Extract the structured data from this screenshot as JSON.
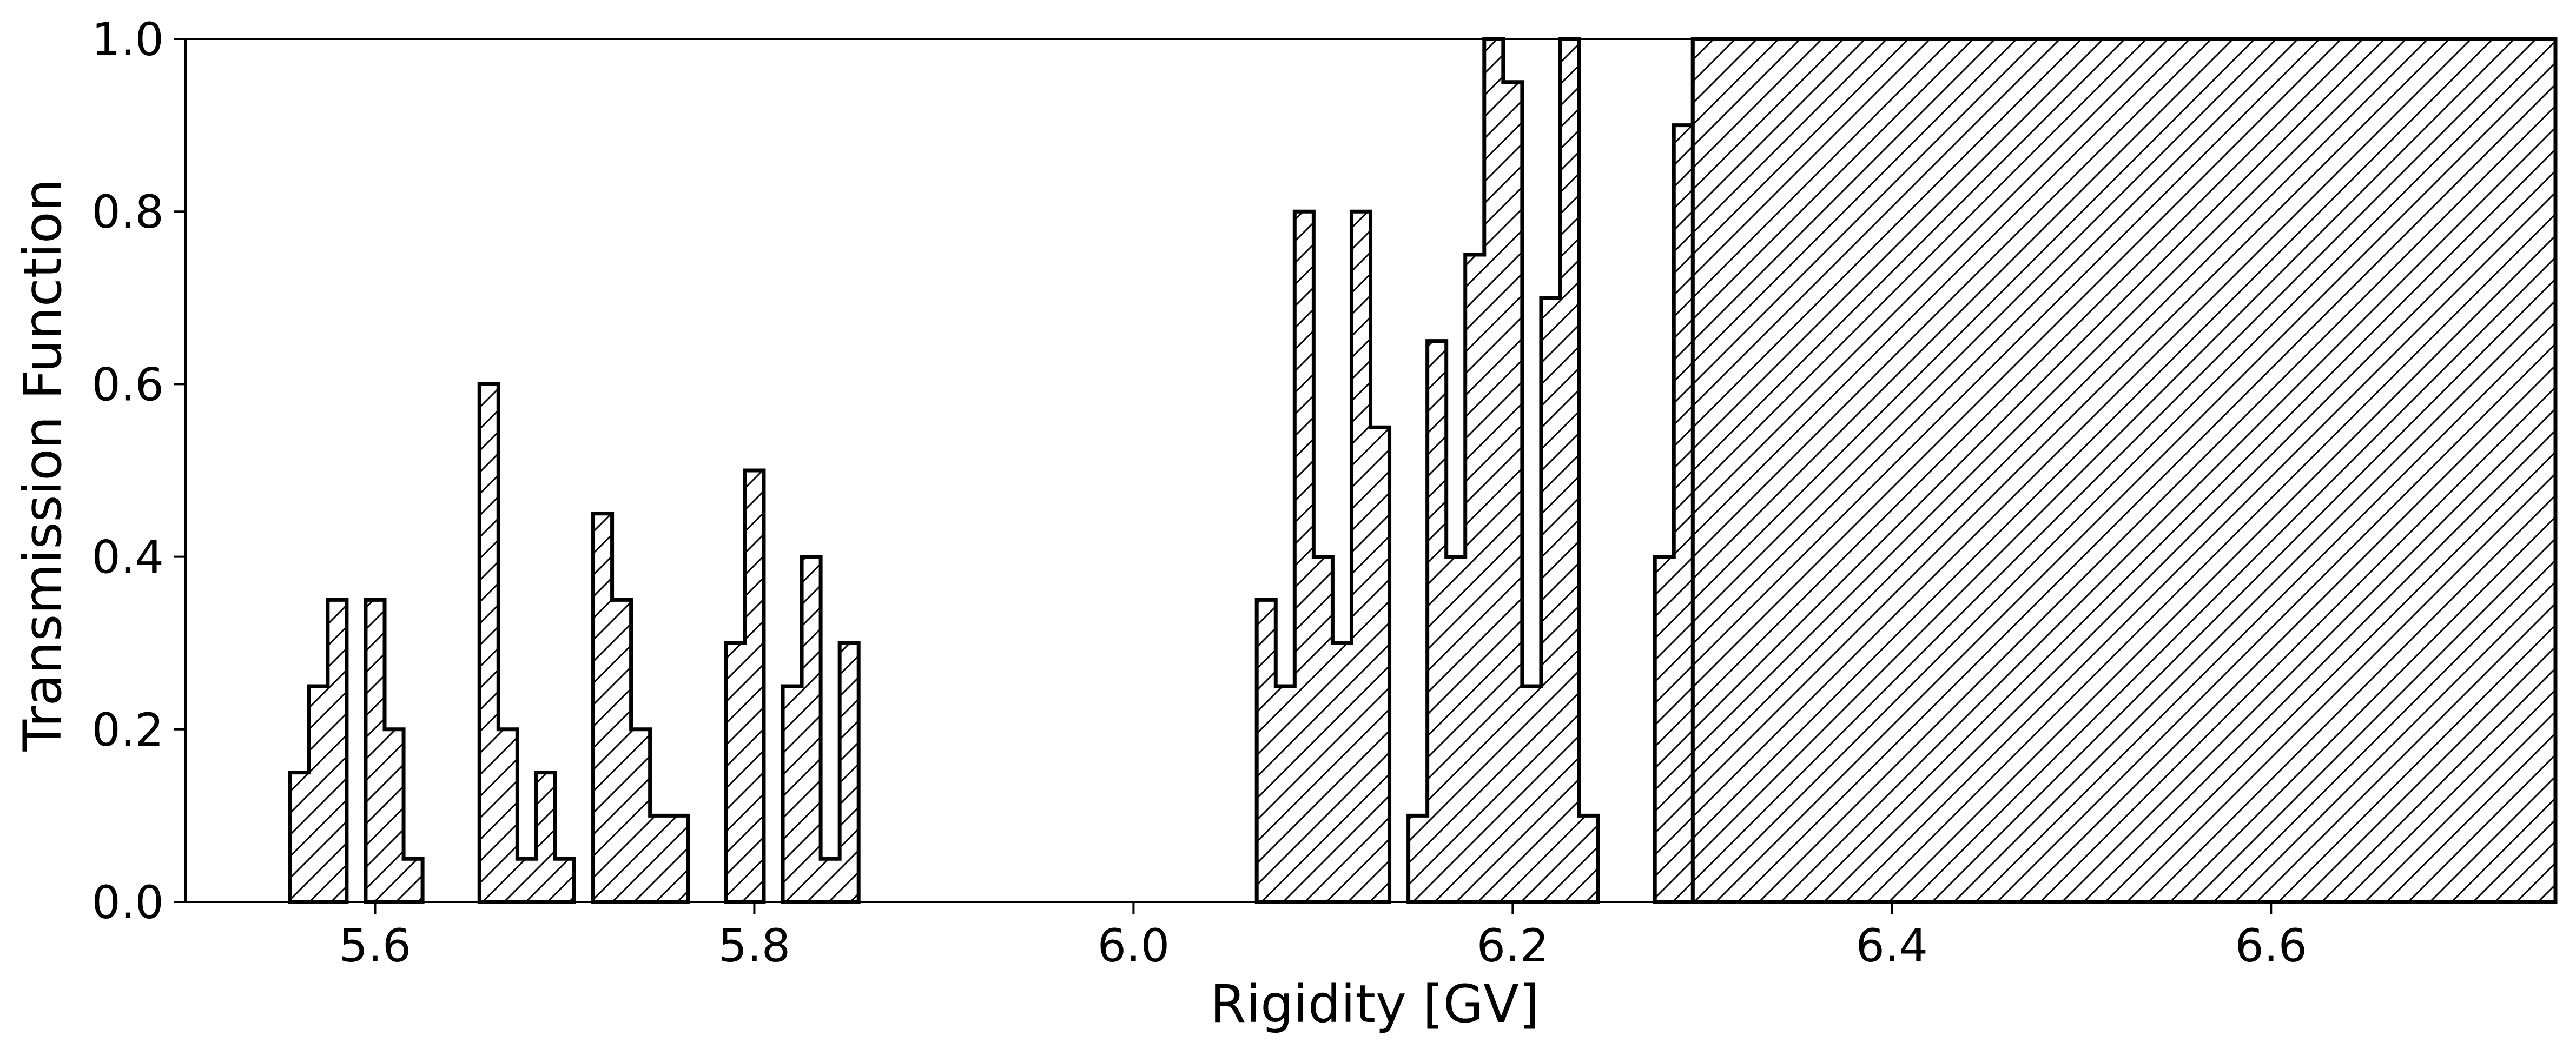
{
  "chart_data": {
    "type": "area",
    "title": "",
    "xlabel": "Rigidity [GV]",
    "ylabel": "Transmission Function",
    "xlim": [
      5.5,
      6.75
    ],
    "ylim": [
      0.0,
      1.0
    ],
    "x_ticks": [
      "5.6",
      "5.8",
      "6.0",
      "6.2",
      "6.4",
      "6.6"
    ],
    "y_ticks": [
      "0.0",
      "0.2",
      "0.4",
      "0.6",
      "0.8",
      "1.0"
    ],
    "grid": false,
    "legend": "none",
    "fill_pattern": "diagonal-hatch",
    "line_color": "#000000",
    "fill_color": "#ffffff",
    "bin_width": 0.01,
    "segments": [
      {
        "start": 5.555,
        "values": [
          0.15,
          0.25,
          0.35
        ]
      },
      {
        "start": 5.595,
        "values": [
          0.35,
          0.2,
          0.05
        ]
      },
      {
        "start": 5.655,
        "values": [
          0.6,
          0.2,
          0.05,
          0.15,
          0.05
        ]
      },
      {
        "start": 5.715,
        "values": [
          0.45,
          0.35,
          0.2,
          0.1,
          0.1
        ]
      },
      {
        "start": 5.785,
        "values": [
          0.3,
          0.5
        ]
      },
      {
        "start": 5.815,
        "values": [
          0.25,
          0.4,
          0.05,
          0.3
        ]
      },
      {
        "start": 6.065,
        "values": [
          0.35,
          0.25,
          0.8,
          0.4,
          0.3,
          0.8,
          0.55
        ]
      },
      {
        "start": 6.145,
        "values": [
          0.1,
          0.65,
          0.4,
          0.75,
          1.0,
          0.95,
          0.25,
          0.7,
          1.0,
          0.1
        ]
      },
      {
        "start": 6.275,
        "values": [
          0.4,
          0.9,
          1.0
        ]
      },
      {
        "start": 6.295,
        "end": 6.75,
        "value": 1.0
      }
    ]
  }
}
